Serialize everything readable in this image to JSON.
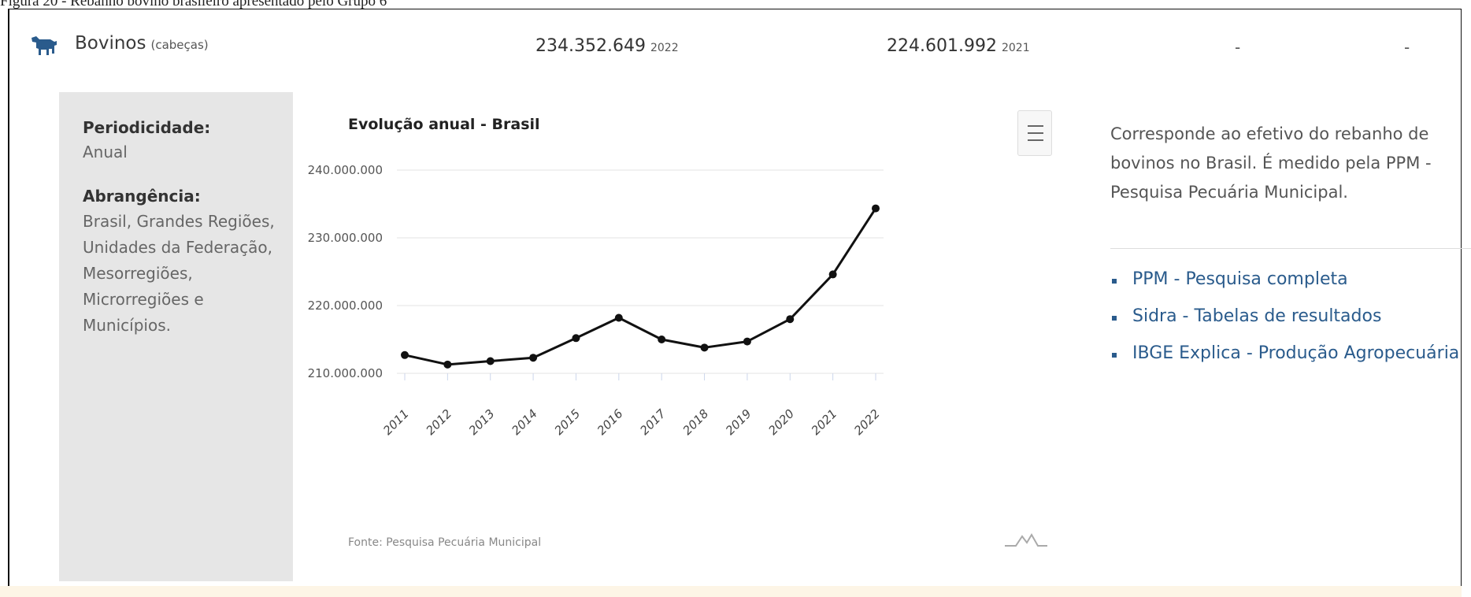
{
  "caption": "Figura 20 - Rebanho bovino brasileiro apresentado pelo Grupo 6",
  "header": {
    "title": "Bovinos",
    "unit": "(cabeças)",
    "stat1_value": "234.352.649",
    "stat1_year": "2022",
    "stat2_value": "224.601.992",
    "stat2_year": "2021",
    "dash1": "-",
    "dash2": "-"
  },
  "meta": {
    "periodicity_label": "Periodicidade:",
    "periodicity_value": "Anual",
    "coverage_label": "Abrangência:",
    "coverage_value": "Brasil, Grandes Regiões, Unidades da Federação, Mesorregiões, Microrregiões e Municípios."
  },
  "chart": {
    "source": "Fonte: Pesquisa Pecuária Municipal"
  },
  "description": "Corresponde ao efetivo do rebanho de bovinos no Brasil. É medido pela PPM - Pesquisa Pecuária Municipal.",
  "links": [
    "PPM - Pesquisa completa",
    "Sidra - Tabelas de resultados",
    "IBGE Explica - Produção Agropecuária"
  ],
  "colors": {
    "accent": "#2a5b8c",
    "line": "#111111",
    "panel": "#e6e6e6"
  },
  "icons": [
    "cow-icon",
    "menu-icon",
    "chart-logo-icon",
    "bullet-icon"
  ],
  "chart_data": {
    "type": "line",
    "title": "Evolução anual - Brasil",
    "xlabel": "",
    "ylabel": "",
    "categories": [
      "2011",
      "2012",
      "2013",
      "2014",
      "2015",
      "2016",
      "2017",
      "2018",
      "2019",
      "2020",
      "2021",
      "2022"
    ],
    "values": [
      212700000,
      211300000,
      211800000,
      212300000,
      215200000,
      218200000,
      215000000,
      213800000,
      214700000,
      218000000,
      224601992,
      234352649
    ],
    "ylim": [
      210000000,
      240000000
    ],
    "yticks": [
      "210.000.000",
      "220.000.000",
      "230.000.000",
      "240.000.000"
    ],
    "ytick_values": [
      210000000,
      220000000,
      230000000,
      240000000
    ],
    "grid": true,
    "legend": "none"
  }
}
